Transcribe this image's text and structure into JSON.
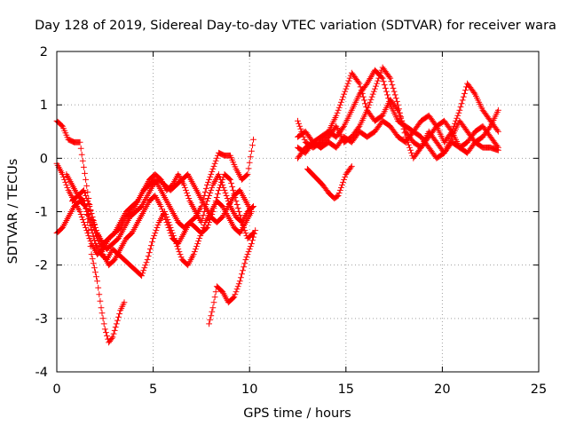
{
  "chart_data": {
    "type": "scatter",
    "title": "Day 128 of 2019, Sidereal Day-to-day VTEC variation (SDTVAR) for receiver wara",
    "xlabel": "GPS time / hours",
    "ylabel": "SDTVAR / TECUs",
    "xlim": [
      0,
      25
    ],
    "ylim": [
      -4,
      2
    ],
    "xticks": [
      "0",
      "5",
      "10",
      "15",
      "20",
      "25"
    ],
    "yticks": [
      "-4",
      "-3",
      "-2",
      "-1",
      "0",
      "1",
      "2"
    ],
    "xtick_values": [
      0,
      5,
      10,
      15,
      20,
      25
    ],
    "ytick_values": [
      -4,
      -3,
      -2,
      -1,
      0,
      1,
      2
    ],
    "grid": true,
    "marker": "+",
    "color": "#ff0000",
    "series": [
      {
        "x": [
          0.0,
          0.3,
          0.6,
          0.9,
          1.2,
          1.5,
          1.8,
          2.1,
          2.4,
          2.7,
          3.0,
          3.3,
          3.6,
          3.9,
          4.2,
          4.5,
          4.8,
          5.1,
          5.4,
          5.7,
          6.0,
          6.3,
          6.6,
          6.9,
          7.2,
          7.5,
          7.8,
          8.1,
          8.4,
          8.7,
          9.0,
          9.3,
          9.6,
          9.9,
          10.2
        ],
        "y": [
          0.7,
          0.6,
          0.35,
          0.3,
          0.3,
          -0.4,
          -1.1,
          -1.4,
          -1.6,
          -1.5,
          -1.4,
          -1.3,
          -1.1,
          -1.0,
          -0.8,
          -0.6,
          -0.5,
          -0.4,
          -0.6,
          -0.8,
          -1.0,
          -1.2,
          -1.3,
          -1.2,
          -1.1,
          -0.9,
          -0.5,
          -0.2,
          0.1,
          0.05,
          0.05,
          -0.2,
          -0.4,
          -0.3,
          0.35
        ]
      },
      {
        "x": [
          0.0,
          0.3,
          0.6,
          0.9,
          1.2,
          1.5,
          1.8,
          2.1,
          2.4,
          2.7,
          3.0,
          3.3,
          3.6,
          3.9,
          4.2,
          4.5,
          4.8,
          5.1,
          5.4,
          5.7,
          6.0,
          6.3,
          6.6,
          6.9,
          7.2,
          7.5,
          7.8,
          8.1,
          8.4,
          8.7,
          9.0,
          9.3,
          9.6,
          9.9,
          10.2
        ],
        "y": [
          -0.1,
          -0.3,
          -0.6,
          -0.8,
          -1.0,
          -1.3,
          -1.6,
          -1.8,
          -1.7,
          -1.5,
          -1.4,
          -1.2,
          -1.0,
          -0.9,
          -0.8,
          -0.6,
          -0.4,
          -0.3,
          -0.4,
          -0.6,
          -0.5,
          -0.3,
          -0.5,
          -0.8,
          -1.0,
          -1.2,
          -0.8,
          -0.5,
          -0.3,
          -0.6,
          -0.9,
          -1.1,
          -1.2,
          -1.0,
          -0.9
        ]
      },
      {
        "x": [
          0.0,
          0.3,
          0.6,
          0.9,
          1.2,
          1.5,
          1.8,
          2.1,
          2.4,
          2.7,
          3.0,
          3.3,
          3.6,
          3.9,
          4.2,
          4.5,
          4.8,
          5.1,
          5.4,
          5.7,
          6.0,
          6.3,
          6.6,
          6.9,
          7.2,
          7.5,
          7.8,
          8.1,
          8.4,
          8.7,
          9.0,
          9.3,
          9.6,
          9.9,
          10.2
        ],
        "y": [
          -1.4,
          -1.3,
          -1.1,
          -0.9,
          -0.8,
          -0.9,
          -1.2,
          -1.5,
          -1.8,
          -2.0,
          -1.9,
          -1.7,
          -1.5,
          -1.4,
          -1.2,
          -1.0,
          -0.8,
          -0.7,
          -0.9,
          -1.2,
          -1.5,
          -1.6,
          -1.4,
          -1.2,
          -1.3,
          -1.4,
          -1.3,
          -1.0,
          -0.6,
          -0.3,
          -0.4,
          -0.8,
          -1.2,
          -1.5,
          -1.4
        ]
      },
      {
        "x": [
          0.5,
          0.8,
          1.1,
          1.4,
          1.7,
          2.0,
          2.3,
          2.6,
          2.9,
          3.2,
          3.5,
          3.8,
          4.1,
          4.4,
          4.7,
          5.0,
          5.3,
          5.6,
          5.9,
          6.2,
          6.5,
          6.8,
          7.1,
          7.4,
          7.7,
          8.0,
          8.3,
          8.6,
          8.9,
          9.2,
          9.5,
          9.8,
          10.1
        ],
        "y": [
          -0.3,
          -0.5,
          -0.7,
          -0.8,
          -1.2,
          -1.6,
          -1.8,
          -1.9,
          -1.7,
          -1.8,
          -1.9,
          -2.0,
          -2.1,
          -2.2,
          -1.9,
          -1.5,
          -1.2,
          -1.0,
          -1.3,
          -1.6,
          -1.9,
          -2.0,
          -1.8,
          -1.5,
          -1.2,
          -1.0,
          -0.8,
          -0.9,
          -1.1,
          -1.3,
          -1.4,
          -1.2,
          -1.0
        ]
      },
      {
        "x": [
          0.8,
          1.1,
          1.4,
          1.7,
          2.0,
          2.3,
          2.6,
          2.9,
          3.2,
          3.5,
          3.8,
          4.1,
          4.4,
          4.7,
          5.0,
          5.3,
          5.6,
          5.9,
          6.2,
          6.5,
          6.8,
          7.1,
          7.4,
          7.7,
          8.0,
          8.3,
          8.6,
          8.9,
          9.2,
          9.5,
          9.8,
          10.1
        ],
        "y": [
          -0.8,
          -0.7,
          -0.6,
          -0.9,
          -1.3,
          -1.6,
          -1.7,
          -1.6,
          -1.5,
          -1.3,
          -1.1,
          -1.0,
          -0.9,
          -0.7,
          -0.5,
          -0.4,
          -0.5,
          -0.6,
          -0.5,
          -0.4,
          -0.3,
          -0.5,
          -0.7,
          -0.9,
          -1.1,
          -1.2,
          -1.1,
          -0.9,
          -0.7,
          -0.6,
          -0.8,
          -1.0
        ]
      },
      {
        "x": [
          1.5,
          1.8,
          2.1,
          2.3,
          2.5,
          2.7,
          2.9,
          3.1,
          3.3,
          3.5
        ],
        "y": [
          -0.9,
          -1.8,
          -2.3,
          -2.8,
          -3.2,
          -3.45,
          -3.35,
          -3.1,
          -2.85,
          -2.7
        ]
      },
      {
        "x": [
          7.9,
          8.1,
          8.3,
          8.6,
          8.9,
          9.2,
          9.5,
          9.8,
          10.1,
          10.3
        ],
        "y": [
          -3.1,
          -2.8,
          -2.4,
          -2.5,
          -2.7,
          -2.6,
          -2.3,
          -1.9,
          -1.6,
          -1.35
        ]
      },
      {
        "x": [
          12.5,
          12.9,
          13.3,
          13.7,
          14.1,
          14.5,
          14.9,
          15.3,
          15.7,
          16.1,
          16.5,
          16.9,
          17.3,
          17.7,
          18.1,
          18.5,
          18.9,
          19.3,
          19.7,
          20.1,
          20.5,
          20.9,
          21.3,
          21.7,
          22.1,
          22.5,
          22.9
        ],
        "y": [
          0.7,
          0.3,
          0.2,
          0.3,
          0.5,
          0.4,
          0.6,
          0.9,
          1.2,
          1.4,
          1.65,
          1.5,
          1.0,
          0.7,
          0.6,
          0.5,
          0.7,
          0.8,
          0.6,
          0.3,
          0.5,
          0.9,
          1.4,
          1.2,
          0.9,
          0.7,
          0.5
        ]
      },
      {
        "x": [
          12.5,
          12.9,
          13.3,
          13.7,
          14.1,
          14.5,
          14.9,
          15.3,
          15.7,
          16.1,
          16.5,
          16.9,
          17.3,
          17.7,
          18.1,
          18.5,
          18.9,
          19.3,
          19.7,
          20.1,
          20.5,
          20.9,
          21.3,
          21.7,
          22.1,
          22.5,
          22.9
        ],
        "y": [
          0.0,
          0.2,
          0.3,
          0.4,
          0.5,
          0.8,
          1.2,
          1.6,
          1.4,
          0.9,
          0.7,
          0.8,
          1.1,
          0.9,
          0.5,
          0.3,
          0.2,
          0.4,
          0.6,
          0.7,
          0.5,
          0.2,
          0.3,
          0.5,
          0.6,
          0.4,
          0.2
        ]
      },
      {
        "x": [
          12.5,
          12.9,
          13.3,
          13.7,
          14.1,
          14.5,
          14.9,
          15.3,
          15.7,
          16.1,
          16.5,
          16.9,
          17.3,
          17.7,
          18.1,
          18.5,
          18.9,
          19.3,
          19.7,
          20.1,
          20.5,
          20.9,
          21.3,
          21.7,
          22.1,
          22.5,
          22.9
        ],
        "y": [
          0.4,
          0.5,
          0.3,
          0.2,
          0.4,
          0.6,
          0.3,
          0.4,
          0.6,
          0.9,
          1.3,
          1.7,
          1.5,
          1.0,
          0.4,
          0.0,
          0.2,
          0.5,
          0.3,
          0.1,
          0.4,
          0.7,
          0.5,
          0.3,
          0.4,
          0.6,
          0.9
        ]
      },
      {
        "x": [
          12.5,
          12.9,
          13.3,
          13.7,
          14.1,
          14.5,
          14.9,
          15.3,
          15.7,
          16.1,
          16.5,
          16.9,
          17.3,
          17.7,
          18.1,
          18.5,
          18.9,
          19.3,
          19.7,
          20.1,
          20.5,
          20.9,
          21.3,
          21.7,
          22.1,
          22.5,
          22.9
        ],
        "y": [
          0.2,
          0.1,
          0.3,
          0.2,
          0.3,
          0.2,
          0.4,
          0.3,
          0.5,
          0.4,
          0.5,
          0.7,
          0.6,
          0.4,
          0.3,
          0.5,
          0.4,
          0.2,
          0.0,
          0.1,
          0.3,
          0.2,
          0.1,
          0.3,
          0.2,
          0.2,
          0.15
        ]
      },
      {
        "x": [
          13.0,
          13.4,
          13.8,
          14.1,
          14.4,
          14.6,
          14.8,
          15.0,
          15.3
        ],
        "y": [
          -0.2,
          -0.35,
          -0.5,
          -0.65,
          -0.75,
          -0.7,
          -0.5,
          -0.3,
          -0.15
        ]
      }
    ]
  }
}
